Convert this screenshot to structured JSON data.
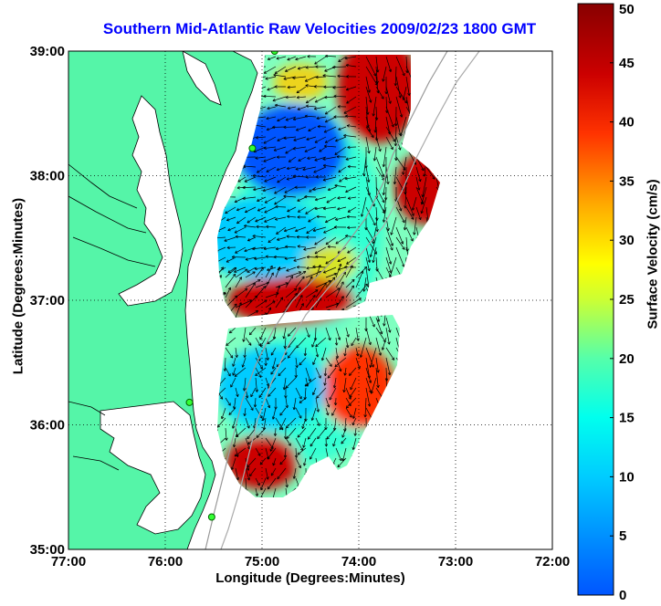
{
  "title": "Southern Mid-Atlantic Raw Velocities 2009/02/23 1800 GMT",
  "xlabel": "Longitude (Degrees:Minutes)",
  "ylabel": "Latitude (Degrees:Minutes)",
  "colorbar": {
    "label": "Surface Velocity (cm/s)",
    "ticks": [
      "0",
      "5",
      "10",
      "15",
      "20",
      "25",
      "30",
      "35",
      "40",
      "45",
      "50"
    ],
    "range": [
      0,
      50
    ]
  },
  "x_ticks": [
    "77:00",
    "76:00",
    "75:00",
    "74:00",
    "73:00",
    "72:00"
  ],
  "y_ticks": [
    "39:00",
    "38:00",
    "37:00",
    "36:00",
    "35:00"
  ],
  "colors": {
    "land": "#55f5a8",
    "title": "#0000ff"
  },
  "chart_data": {
    "type": "heatmap",
    "title": "Southern Mid-Atlantic Raw Velocities 2009/02/23 1800 GMT",
    "xlabel": "Longitude (Degrees:Minutes)",
    "ylabel": "Latitude (Degrees:Minutes)",
    "xlim": [
      -77,
      -72
    ],
    "ylim": [
      35,
      39
    ],
    "grid": true,
    "value_range_cm_s": [
      0,
      50
    ],
    "regions": [
      {
        "name": "north-high",
        "lon": -73.8,
        "lat": 38.7,
        "speed": 48
      },
      {
        "name": "northeast-high",
        "lon": -73.3,
        "lat": 37.9,
        "speed": 48
      },
      {
        "name": "central-high",
        "lon": -74.7,
        "lat": 37.0,
        "speed": 48
      },
      {
        "name": "southeast-high",
        "lon": -74.0,
        "lat": 36.3,
        "speed": 40
      },
      {
        "name": "southwest-high",
        "lon": -75.0,
        "lat": 35.7,
        "speed": 44
      },
      {
        "name": "north-low",
        "lon": -74.7,
        "lat": 38.2,
        "speed": 8
      },
      {
        "name": "central-low",
        "lon": -75.0,
        "lat": 37.5,
        "speed": 12
      },
      {
        "name": "south-low",
        "lon": -74.9,
        "lat": 36.3,
        "speed": 12
      }
    ],
    "stations": [
      {
        "lon": -74.87,
        "lat": 39.0
      },
      {
        "lon": -75.1,
        "lat": 38.22
      },
      {
        "lon": -75.75,
        "lat": 36.18
      },
      {
        "lon": -75.52,
        "lat": 35.26
      }
    ]
  }
}
